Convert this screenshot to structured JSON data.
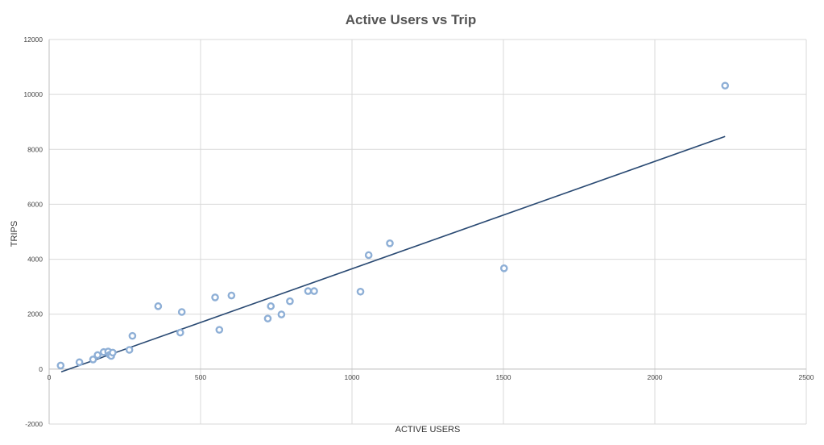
{
  "chart_data": {
    "type": "scatter",
    "title": "Active Users vs Trip",
    "xlabel": "ACTIVE USERS",
    "ylabel": "TRIPS",
    "xlim": [
      0,
      2500
    ],
    "ylim": [
      -2000,
      12000
    ],
    "x_ticks": [
      0,
      500,
      1000,
      1500,
      2000,
      2500
    ],
    "y_ticks": [
      -2000,
      0,
      2000,
      4000,
      6000,
      8000,
      10000,
      12000
    ],
    "grid": true,
    "marker_color": "#8eafd6",
    "trendline_color": "#2a4a73",
    "series": [
      {
        "points": [
          {
            "x": 38,
            "y": 130
          },
          {
            "x": 100,
            "y": 250
          },
          {
            "x": 145,
            "y": 350
          },
          {
            "x": 160,
            "y": 510
          },
          {
            "x": 180,
            "y": 620
          },
          {
            "x": 195,
            "y": 640
          },
          {
            "x": 200,
            "y": 520
          },
          {
            "x": 205,
            "y": 480
          },
          {
            "x": 210,
            "y": 600
          },
          {
            "x": 265,
            "y": 700
          },
          {
            "x": 275,
            "y": 1210
          },
          {
            "x": 360,
            "y": 2290
          },
          {
            "x": 433,
            "y": 1330
          },
          {
            "x": 438,
            "y": 2080
          },
          {
            "x": 548,
            "y": 2610
          },
          {
            "x": 562,
            "y": 1430
          },
          {
            "x": 602,
            "y": 2680
          },
          {
            "x": 722,
            "y": 1840
          },
          {
            "x": 732,
            "y": 2290
          },
          {
            "x": 767,
            "y": 1990
          },
          {
            "x": 795,
            "y": 2470
          },
          {
            "x": 855,
            "y": 2840
          },
          {
            "x": 875,
            "y": 2840
          },
          {
            "x": 1028,
            "y": 2820
          },
          {
            "x": 1055,
            "y": 4150
          },
          {
            "x": 1125,
            "y": 4580
          },
          {
            "x": 1502,
            "y": 3670
          },
          {
            "x": 2232,
            "y": 10320
          }
        ]
      }
    ],
    "trendline": {
      "x": [
        40,
        2232
      ],
      "y": [
        -100,
        8470
      ]
    }
  }
}
